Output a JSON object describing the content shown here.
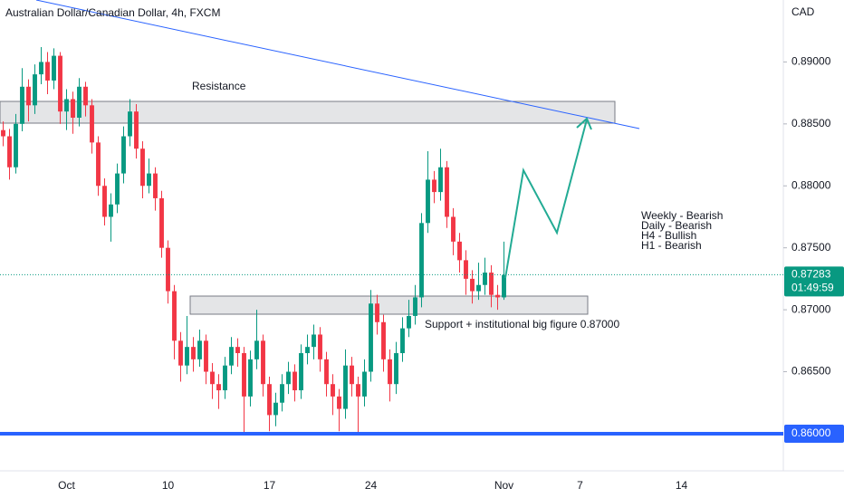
{
  "chart_data": {
    "type": "candlestick",
    "title": "Australian Dollar/Canadian Dollar, 4h, FXCM",
    "currency": "CAD",
    "categories": [
      null,
      null,
      null,
      null,
      null,
      null,
      null,
      null,
      null,
      null,
      "Oct",
      null,
      null,
      null,
      null,
      null,
      null,
      null,
      null,
      null,
      null,
      null,
      null,
      null,
      null,
      null,
      "10",
      null,
      null,
      null,
      null,
      null,
      null,
      null,
      null,
      null,
      null,
      null,
      null,
      null,
      null,
      null,
      "17",
      null,
      null,
      null,
      null,
      null,
      null,
      null,
      null,
      null,
      null,
      null,
      null,
      null,
      null,
      null,
      "24",
      null,
      null,
      null,
      null,
      null,
      null,
      null,
      null,
      null,
      null,
      null,
      null,
      null,
      null,
      null,
      null,
      null,
      null,
      null,
      null,
      "Nov",
      null,
      null,
      null,
      null,
      null,
      null,
      null,
      null,
      null,
      null,
      null,
      "7",
      null,
      null,
      null,
      null,
      null,
      null,
      null,
      null,
      null,
      null,
      null,
      null,
      null,
      null,
      null,
      "14",
      null,
      null,
      null,
      null,
      null,
      null,
      null,
      null,
      null,
      null,
      null,
      null,
      null,
      null,
      null
    ],
    "open": [
      0.8845,
      0.884,
      0.8815,
      0.885,
      0.888,
      0.8865,
      0.889,
      0.89,
      0.8885,
      0.8905,
      0.886,
      0.887,
      0.8855,
      0.888,
      0.8865,
      0.8835,
      0.88,
      0.8775,
      0.8785,
      0.881,
      0.884,
      0.886,
      0.883,
      0.88,
      0.881,
      0.879,
      0.875,
      0.8715,
      0.8675,
      0.8655,
      0.867,
      0.866,
      0.8675,
      0.865,
      0.864,
      0.8635,
      0.8655,
      0.867,
      0.8665,
      0.863,
      0.866,
      0.8675,
      0.864,
      0.8615,
      0.8625,
      0.864,
      0.865,
      0.8635,
      0.8665,
      0.867,
      0.868,
      0.866,
      0.864,
      0.863,
      0.862,
      0.8655,
      0.864,
      0.863,
      0.865,
      0.8705,
      0.869,
      0.866,
      0.864,
      0.8665,
      0.8685,
      0.8695,
      0.871,
      0.877,
      0.8805,
      0.8795,
      0.8815,
      0.8775,
      0.8755,
      0.874,
      0.8725,
      0.8715,
      0.872,
      0.873,
      0.8712,
      0.871,
      null,
      null,
      null,
      null,
      null,
      null,
      null,
      null,
      null,
      null,
      null,
      null,
      null,
      null,
      null,
      null,
      null,
      null,
      null,
      null,
      null,
      null,
      null,
      null,
      null,
      null,
      null,
      null,
      null,
      null,
      null,
      null,
      null,
      null,
      null,
      null,
      null,
      null,
      null,
      null,
      null,
      null,
      null
    ],
    "high": [
      0.8852,
      0.8846,
      0.8858,
      0.8895,
      0.8886,
      0.8898,
      0.8912,
      0.8908,
      0.8911,
      0.8908,
      0.8878,
      0.8876,
      0.8887,
      0.8884,
      0.887,
      0.884,
      0.8806,
      0.8794,
      0.8818,
      0.8848,
      0.887,
      0.8866,
      0.8836,
      0.8822,
      0.8815,
      0.8796,
      0.8756,
      0.872,
      0.8682,
      0.8695,
      0.8678,
      0.8684,
      0.868,
      0.8657,
      0.8648,
      0.8662,
      0.8678,
      0.8677,
      0.867,
      0.8667,
      0.87,
      0.868,
      0.8646,
      0.8633,
      0.8648,
      0.8658,
      0.8656,
      0.8672,
      0.868,
      0.8688,
      0.8686,
      0.8666,
      0.8648,
      0.8636,
      0.8668,
      0.8662,
      0.8646,
      0.866,
      0.8716,
      0.8712,
      0.8696,
      0.8668,
      0.8674,
      0.8694,
      0.8708,
      0.872,
      0.8778,
      0.8828,
      0.8812,
      0.883,
      0.882,
      0.8782,
      0.8762,
      0.8748,
      0.8732,
      0.8738,
      0.8742,
      0.8736,
      0.872,
      0.8755,
      null,
      null,
      null,
      null,
      null,
      null,
      null,
      null,
      null,
      null,
      null,
      null,
      null,
      null,
      null,
      null,
      null,
      null,
      null,
      null,
      null,
      null,
      null,
      null,
      null,
      null,
      null,
      null,
      null,
      null,
      null,
      null,
      null,
      null,
      null,
      null,
      null,
      null,
      null,
      null,
      null,
      null,
      null
    ],
    "low": [
      0.8832,
      0.8805,
      0.881,
      0.8844,
      0.8852,
      0.8858,
      0.8882,
      0.8874,
      0.8878,
      0.885,
      0.8845,
      0.8842,
      0.8848,
      0.8856,
      0.8826,
      0.8792,
      0.8768,
      0.8755,
      0.8778,
      0.8802,
      0.8832,
      0.8822,
      0.879,
      0.8794,
      0.878,
      0.8742,
      0.8705,
      0.866,
      0.8642,
      0.8648,
      0.865,
      0.8654,
      0.864,
      0.8628,
      0.862,
      0.8628,
      0.8648,
      0.8654,
      0.86,
      0.8622,
      0.8652,
      0.863,
      0.8602,
      0.8606,
      0.8618,
      0.8632,
      0.8626,
      0.8628,
      0.8656,
      0.866,
      0.865,
      0.863,
      0.8615,
      0.8602,
      0.8612,
      0.863,
      0.8601,
      0.8622,
      0.8642,
      0.868,
      0.865,
      0.8626,
      0.8632,
      0.8658,
      0.8678,
      0.8688,
      0.8702,
      0.8762,
      0.8786,
      0.8788,
      0.8766,
      0.8744,
      0.873,
      0.8712,
      0.8705,
      0.8708,
      0.8712,
      0.8702,
      0.87,
      0.8708,
      null,
      null,
      null,
      null,
      null,
      null,
      null,
      null,
      null,
      null,
      null,
      null,
      null,
      null,
      null,
      null,
      null,
      null,
      null,
      null,
      null,
      null,
      null,
      null,
      null,
      null,
      null,
      null,
      null,
      null,
      null,
      null,
      null,
      null,
      null,
      null,
      null,
      null,
      null,
      null,
      null,
      null,
      null
    ],
    "close": [
      0.884,
      0.8815,
      0.885,
      0.888,
      0.8865,
      0.889,
      0.89,
      0.8885,
      0.8905,
      0.886,
      0.887,
      0.8855,
      0.888,
      0.8865,
      0.8835,
      0.88,
      0.8775,
      0.8785,
      0.881,
      0.884,
      0.886,
      0.883,
      0.88,
      0.881,
      0.879,
      0.875,
      0.8715,
      0.8675,
      0.8655,
      0.867,
      0.866,
      0.8675,
      0.865,
      0.864,
      0.8635,
      0.8655,
      0.867,
      0.8665,
      0.863,
      0.866,
      0.8675,
      0.864,
      0.8615,
      0.8625,
      0.864,
      0.865,
      0.8635,
      0.8665,
      0.867,
      0.868,
      0.866,
      0.864,
      0.863,
      0.862,
      0.8655,
      0.864,
      0.863,
      0.865,
      0.8705,
      0.869,
      0.866,
      0.864,
      0.8665,
      0.8685,
      0.8695,
      0.871,
      0.877,
      0.8805,
      0.8795,
      0.8815,
      0.8775,
      0.8755,
      0.874,
      0.8725,
      0.8715,
      0.872,
      0.873,
      0.8712,
      0.871,
      0.8728,
      null,
      null,
      null,
      null,
      null,
      null,
      null,
      null,
      null,
      null,
      null,
      null,
      null,
      null,
      null,
      null,
      null,
      null,
      null,
      null,
      null,
      null,
      null,
      null,
      null,
      null,
      null,
      null,
      null,
      null,
      null,
      null,
      null,
      null,
      null,
      null,
      null,
      null,
      null,
      null,
      null,
      null,
      null
    ],
    "up_color": "#089981",
    "down_color": "#f23645",
    "ylim": [
      0.857,
      0.895
    ],
    "yticks": [
      {
        "value": 0.865,
        "label": "0.86500"
      },
      {
        "value": 0.87,
        "label": "0.87000"
      },
      {
        "value": 0.875,
        "label": "0.87500"
      },
      {
        "value": 0.88,
        "label": "0.88000"
      },
      {
        "value": 0.885,
        "label": "0.88500"
      },
      {
        "value": 0.89,
        "label": "0.89000"
      }
    ],
    "level": {
      "value": 0.86,
      "label": "0.86000",
      "color": "#2962ff"
    },
    "last_price": {
      "value": 0.87283,
      "label": "0.87283",
      "countdown": "01:49:59",
      "color": "#089981"
    },
    "annotations": {
      "resistance": "Resistance",
      "support": "Support + institutional big figure 0.87000",
      "bias": [
        "Weekly - Bearish",
        "Daily - Bearish",
        "H4 - Bullish",
        "H1 - Bearish"
      ]
    }
  }
}
